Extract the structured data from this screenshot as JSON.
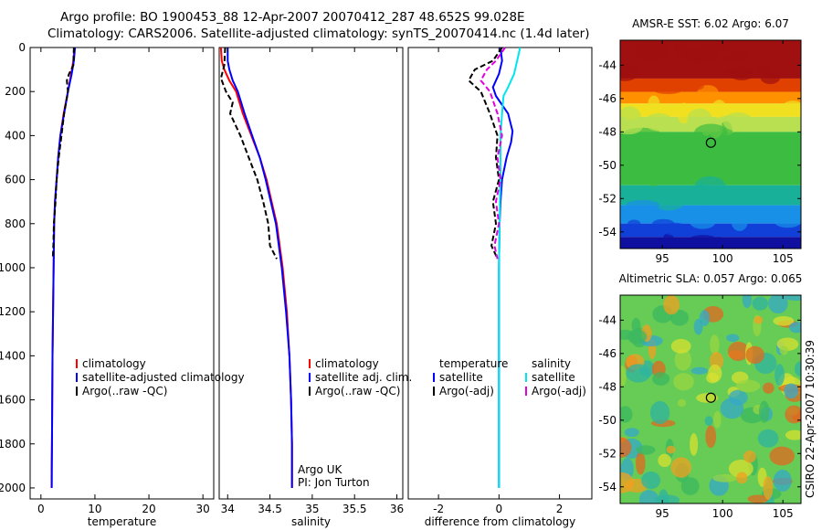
{
  "title": {
    "line1": "Argo profile: BO 1900453_88 12-Apr-2007 20070412_287 48.652S 99.028E",
    "line2": "Climatology: CARS2006. Satellite-adjusted climatology: synTS_20070414.nc (1.4d later)"
  },
  "footer_stamp": "CSIRO 22-Apr-2007 10:30:39",
  "colors": {
    "climatology": "#ff0000",
    "satellite": "#0000ff",
    "argo": "#000000",
    "cyan": "#00e5ee",
    "magenta": "#e000e0"
  },
  "chart_data": [
    {
      "type": "line",
      "xlabel": "temperature",
      "xticks": [
        0,
        10,
        20,
        30
      ],
      "xlim": [
        -2,
        32
      ],
      "ylim": [
        2050,
        0
      ],
      "yticks": [
        0,
        200,
        400,
        600,
        800,
        1000,
        1200,
        1400,
        1600,
        1800,
        2000
      ],
      "legend": [
        "climatology",
        "satellite-adjusted climatology",
        "Argo(..raw -QC)"
      ],
      "series": [
        {
          "name": "climatology",
          "color": "#ff0000",
          "dash": "",
          "x": [
            6.2,
            6.0,
            5.6,
            5.0,
            4.2,
            3.6,
            3.2,
            2.9,
            2.6,
            2.45,
            2.35,
            2.25,
            2.15,
            2.1,
            2.05,
            2.0,
            2.0
          ],
          "y": [
            0,
            60,
            120,
            200,
            300,
            400,
            500,
            600,
            700,
            800,
            1000,
            1200,
            1400,
            1600,
            1800,
            1900,
            2000
          ]
        },
        {
          "name": "satellite-adjusted climatology",
          "color": "#0000ff",
          "dash": "",
          "x": [
            6.3,
            6.1,
            5.7,
            5.0,
            4.3,
            3.6,
            3.2,
            2.9,
            2.6,
            2.45,
            2.35,
            2.25,
            2.15,
            2.1,
            2.05,
            2.0
          ],
          "y": [
            0,
            60,
            120,
            200,
            300,
            400,
            500,
            600,
            700,
            800,
            1000,
            1200,
            1400,
            1600,
            1800,
            2000
          ]
        },
        {
          "name": "Argo(..raw -QC)",
          "color": "#000000",
          "dash": "6,3",
          "x": [
            6.1,
            6.0,
            5.2,
            4.8,
            5.0,
            4.3,
            3.8,
            3.3,
            2.9,
            2.7,
            2.4,
            2.3,
            2.2
          ],
          "y": [
            0,
            80,
            120,
            150,
            200,
            300,
            400,
            500,
            600,
            700,
            800,
            900,
            960
          ]
        }
      ]
    },
    {
      "type": "line",
      "xlabel": "salinity",
      "xticks": [
        34,
        34.5,
        35,
        35.5,
        36
      ],
      "xlim": [
        33.9,
        36.07
      ],
      "ylim": [
        2050,
        0
      ],
      "yticks": [],
      "legend": [
        "climatology",
        "satellite adj. clim.",
        "Argo(..raw -QC)"
      ],
      "series": [
        {
          "name": "climatology",
          "color": "#ff0000",
          "dash": "",
          "x": [
            33.92,
            33.93,
            33.96,
            34.02,
            34.1,
            34.18,
            34.28,
            34.38,
            34.46,
            34.52,
            34.58,
            34.65,
            34.7,
            34.73,
            34.75,
            34.76,
            34.76,
            34.76
          ],
          "y": [
            0,
            60,
            100,
            150,
            200,
            300,
            400,
            500,
            600,
            700,
            800,
            1000,
            1200,
            1400,
            1600,
            1800,
            1950,
            2000
          ]
        },
        {
          "name": "satellite adj. clim.",
          "color": "#0000ff",
          "dash": "",
          "x": [
            34.0,
            34.0,
            34.02,
            34.06,
            34.12,
            34.2,
            34.29,
            34.38,
            34.45,
            34.51,
            34.57,
            34.64,
            34.69,
            34.73,
            34.75,
            34.76,
            34.76,
            34.76
          ],
          "y": [
            0,
            60,
            100,
            150,
            200,
            300,
            400,
            500,
            600,
            700,
            800,
            1000,
            1200,
            1400,
            1600,
            1800,
            1950,
            2000
          ]
        },
        {
          "name": "Argo(..raw -QC)",
          "color": "#000000",
          "dash": "6,3",
          "x": [
            33.97,
            33.96,
            33.92,
            33.98,
            34.06,
            34.03,
            34.15,
            34.25,
            34.35,
            34.42,
            34.48,
            34.5,
            34.58
          ],
          "y": [
            0,
            80,
            140,
            200,
            250,
            300,
            400,
            500,
            600,
            700,
            800,
            900,
            960
          ]
        }
      ],
      "annotation": [
        "Argo UK",
        "PI: Jon Turton"
      ]
    },
    {
      "type": "line",
      "xlabel": "difference from climatology",
      "xticks": [
        -2,
        0,
        2
      ],
      "xlim": [
        -3,
        3.07
      ],
      "ylim": [
        2050,
        0
      ],
      "yticks": [],
      "legend_headers": [
        "temperature",
        "salinity"
      ],
      "legend": [
        "satellite",
        "Argo(-adj)",
        "satellite",
        "Argo(-adj)"
      ],
      "series": [
        {
          "name": "temperature satellite",
          "color": "#0000ff",
          "dash": "",
          "x": [
            0.05,
            0.1,
            0.0,
            -0.2,
            -0.1,
            0.3,
            0.45,
            0.4,
            0.25,
            0.1,
            0.05,
            0.02,
            0.0,
            0.0,
            0.0,
            0.0,
            0.0
          ],
          "y": [
            0,
            60,
            120,
            180,
            220,
            300,
            380,
            430,
            500,
            600,
            700,
            800,
            1000,
            1200,
            1500,
            1800,
            2000
          ]
        },
        {
          "name": "temperature Argo(-adj)",
          "color": "#000000",
          "dash": "6,3",
          "x": [
            0.1,
            -0.2,
            -0.8,
            -1.0,
            -0.6,
            -0.3,
            -0.05,
            -0.1,
            0.0,
            -0.2,
            -0.1,
            -0.25,
            -0.05
          ],
          "y": [
            0,
            60,
            100,
            150,
            200,
            300,
            400,
            500,
            600,
            700,
            800,
            900,
            960
          ]
        },
        {
          "name": "salinity satellite",
          "color": "#00e5ee",
          "dash": "",
          "x": [
            0.7,
            0.6,
            0.5,
            0.3,
            0.15,
            0.1,
            0.05,
            0.05,
            0.05,
            0.03,
            0.02,
            0.0,
            0.0,
            0.0,
            0.0,
            0.0,
            0.0
          ],
          "y": [
            0,
            60,
            120,
            180,
            220,
            300,
            400,
            500,
            600,
            700,
            800,
            1000,
            1200,
            1400,
            1600,
            1800,
            2000
          ]
        },
        {
          "name": "salinity Argo(-adj)",
          "color": "#e000e0",
          "dash": "6,3",
          "x": [
            0.2,
            -0.1,
            -0.4,
            -0.6,
            -0.3,
            -0.05,
            0.1,
            -0.05,
            0.05,
            -0.1,
            0.0,
            -0.15,
            -0.05
          ],
          "y": [
            0,
            60,
            100,
            150,
            200,
            300,
            400,
            500,
            600,
            700,
            800,
            900,
            960
          ]
        }
      ]
    },
    {
      "type": "heatmap",
      "title": "AMSR-E SST: 6.02 Argo: 6.07",
      "xticks": [
        95,
        100,
        105
      ],
      "yticks": [
        -44,
        -46,
        -48,
        -50,
        -52,
        -54
      ],
      "xlim": [
        91.5,
        106.5
      ],
      "ylim": [
        -55,
        -42.5
      ],
      "marker": {
        "lon": 99.028,
        "lat": -48.652
      },
      "bands": [
        {
          "ymax": -42.5,
          "ymin": -44.8,
          "color": "#a01010"
        },
        {
          "ymax": -44.8,
          "ymin": -45.6,
          "color": "#e04000"
        },
        {
          "ymax": -45.6,
          "ymin": -46.3,
          "color": "#ff9000"
        },
        {
          "ymax": -46.3,
          "ymin": -47.1,
          "color": "#f0e020"
        },
        {
          "ymax": -47.1,
          "ymin": -48.0,
          "color": "#b8e050"
        },
        {
          "ymax": -48.0,
          "ymin": -51.2,
          "color": "#3cbc40"
        },
        {
          "ymax": -51.2,
          "ymin": -52.4,
          "color": "#18b098"
        },
        {
          "ymax": -52.4,
          "ymin": -53.5,
          "color": "#1890e8"
        },
        {
          "ymax": -53.5,
          "ymin": -54.3,
          "color": "#1040d8"
        },
        {
          "ymax": -54.3,
          "ymin": -55.0,
          "color": "#1010a0"
        }
      ]
    },
    {
      "type": "heatmap",
      "title": "Altimetric SLA: 0.057 Argo: 0.065",
      "xticks": [
        95,
        100,
        105
      ],
      "yticks": [
        -44,
        -46,
        -48,
        -50,
        -52,
        -54
      ],
      "xlim": [
        91.5,
        106.5
      ],
      "ylim": [
        -55,
        -42.5
      ],
      "marker": {
        "lon": 99.028,
        "lat": -48.652
      },
      "background": "#66cc55"
    }
  ]
}
